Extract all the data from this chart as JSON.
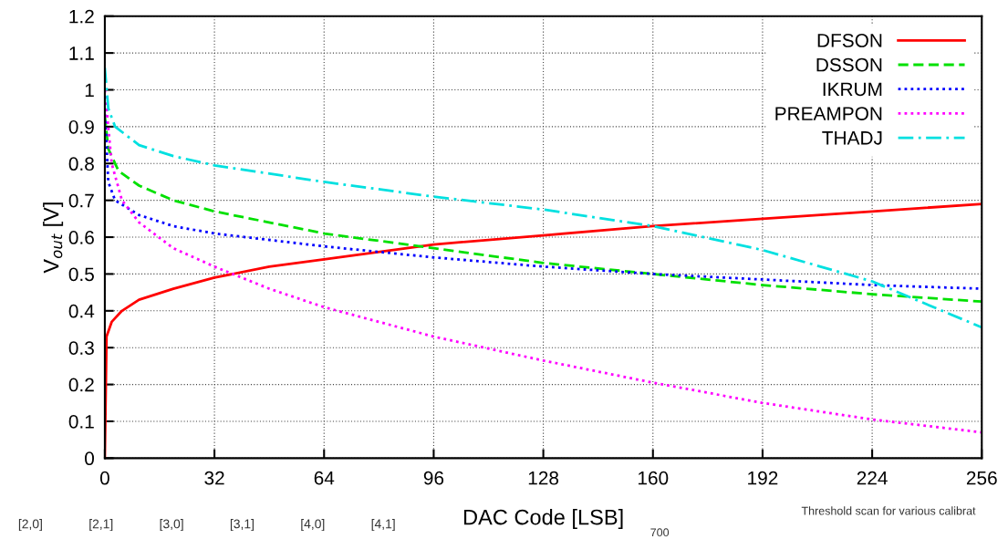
{
  "chart_data": {
    "type": "line",
    "xlabel": "DAC Code [LSB]",
    "ylabel": "V$_{out}$ [V]",
    "xlim": [
      0,
      256
    ],
    "xticks": [
      0,
      32,
      64,
      96,
      128,
      160,
      192,
      224,
      256
    ],
    "ylim": [
      0,
      1.2
    ],
    "yticks": [
      0,
      0.1,
      0.2,
      0.3,
      0.4,
      0.5,
      0.6,
      0.7,
      0.8,
      0.9,
      1,
      1.1,
      1.2
    ],
    "grid": true,
    "legend": "top right",
    "marker": "none",
    "series": [
      {
        "name": "DFSON",
        "color": "#ff0000",
        "line_style": "solid",
        "x": [
          0,
          0.5,
          2,
          5,
          10,
          20,
          32,
          48,
          64,
          96,
          128,
          160,
          192,
          224,
          256
        ],
        "values": [
          0,
          0.33,
          0.37,
          0.4,
          0.43,
          0.46,
          0.49,
          0.52,
          0.54,
          0.58,
          0.605,
          0.63,
          0.65,
          0.67,
          0.69
        ]
      },
      {
        "name": "DSSON",
        "color": "#00e000",
        "line_style": "dashed",
        "x": [
          0,
          1,
          4,
          10,
          20,
          32,
          64,
          96,
          128,
          160,
          192,
          224,
          256
        ],
        "values": [
          0.93,
          0.84,
          0.78,
          0.74,
          0.7,
          0.67,
          0.61,
          0.57,
          0.53,
          0.5,
          0.47,
          0.445,
          0.425
        ]
      },
      {
        "name": "IKRUM",
        "color": "#0000ff",
        "line_style": "dotted",
        "x": [
          0,
          1,
          3,
          10,
          20,
          32,
          64,
          96,
          128,
          160,
          192,
          224,
          256
        ],
        "values": [
          0.95,
          0.75,
          0.7,
          0.66,
          0.63,
          0.61,
          0.575,
          0.545,
          0.52,
          0.5,
          0.485,
          0.47,
          0.46
        ]
      },
      {
        "name": "PREAMPON",
        "color": "#ff00ff",
        "line_style": "dotted",
        "x": [
          0,
          2,
          5,
          10,
          20,
          32,
          48,
          64,
          96,
          128,
          160,
          192,
          224,
          256
        ],
        "values": [
          1.0,
          0.8,
          0.7,
          0.64,
          0.57,
          0.52,
          0.46,
          0.41,
          0.33,
          0.265,
          0.205,
          0.15,
          0.105,
          0.07
        ]
      },
      {
        "name": "THADJ",
        "color": "#00e0e0",
        "line_style": "dashdot",
        "x": [
          0,
          1,
          3,
          10,
          20,
          32,
          64,
          96,
          128,
          160,
          192,
          224,
          256
        ],
        "values": [
          1.06,
          0.95,
          0.9,
          0.85,
          0.82,
          0.795,
          0.75,
          0.71,
          0.675,
          0.63,
          0.565,
          0.48,
          0.355
        ]
      }
    ],
    "annotations": [
      "[2,0]",
      "[2,1]",
      "[3,0]",
      "[3,1]",
      "[4,0]",
      "[4,1]",
      "Threshold scan for various calibrat",
      "700"
    ]
  }
}
